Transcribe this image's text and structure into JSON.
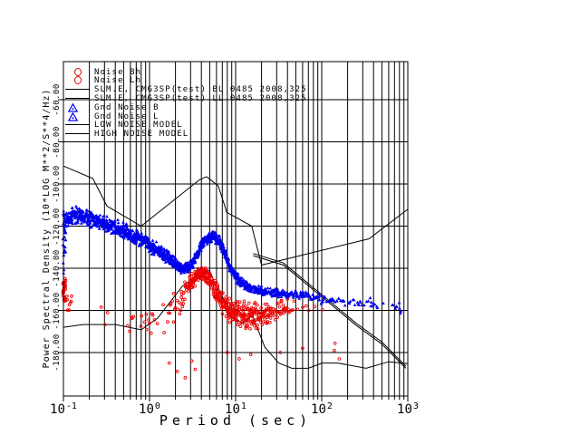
{
  "colors": {
    "background": "#ffffff",
    "grid": "#000000",
    "model_line": "#000000",
    "gnd_noise_blue": "#0000ee",
    "noise_red": "#ee0000"
  },
  "legend": {
    "items": [
      {
        "symbol": "red-circle",
        "label": "Noise Bh"
      },
      {
        "symbol": "red-circle",
        "label": "Noise Lh"
      },
      {
        "symbol": "black-line",
        "label": "SLM.E, CMG3SP(test) BL 0485 2008,325"
      },
      {
        "symbol": "black-line",
        "label": "SLM.E, CMG3SP(test) LL 0485 2008,325"
      },
      {
        "symbol": "blue-triangle",
        "label": "Gnd Noise B"
      },
      {
        "symbol": "blue-triangle",
        "label": "Gnd Noise L"
      },
      {
        "symbol": "black-line",
        "label": "LOW NOISE MODEL"
      },
      {
        "symbol": "black-line",
        "label": "HIGH NOISE MODEL"
      }
    ]
  },
  "chart_data": {
    "type": "scatter",
    "xlabel": "Period (sec)",
    "ylabel": "Power Spectral Density (10*LOG M**2/S**4/Hz)",
    "x_scale": "log",
    "xlim": [
      0.1,
      1000
    ],
    "ylim": [
      -200.5,
      -42
    ],
    "grid": "vertical lines at every log minor tick, horizontal lines every 20 dB",
    "x_ticks": [
      {
        "base": "10",
        "exp": "-1",
        "logp": -1
      },
      {
        "base": "10",
        "exp": "0",
        "logp": 0
      },
      {
        "base": "10",
        "exp": "1",
        "logp": 1
      },
      {
        "base": "10",
        "exp": "2",
        "logp": 2
      },
      {
        "base": "10",
        "exp": "3",
        "logp": 3
      }
    ],
    "y_ticks": [
      {
        "label": "-60.00",
        "value": -60
      },
      {
        "label": "-80.00",
        "value": -80
      },
      {
        "label": "-100.00",
        "value": -100
      },
      {
        "label": "-120.00",
        "value": -120
      },
      {
        "label": "-140.00",
        "value": -140
      },
      {
        "label": "-160.00",
        "value": -160
      },
      {
        "label": "-180.00",
        "value": -180
      }
    ],
    "models": {
      "high_noise_model": [
        [
          0.1,
          -91.5
        ],
        [
          0.22,
          -97.4
        ],
        [
          0.32,
          -110.5
        ],
        [
          0.8,
          -120
        ],
        [
          3.8,
          -98
        ],
        [
          4.6,
          -96.5
        ],
        [
          6.3,
          -101
        ],
        [
          7.9,
          -113.5
        ],
        [
          15.4,
          -120
        ],
        [
          20,
          -138.5
        ],
        [
          354.8,
          -126
        ],
        [
          1000,
          -112
        ]
      ],
      "low_noise_model": [
        [
          0.1,
          -168
        ],
        [
          0.17,
          -166.7
        ],
        [
          0.4,
          -166.7
        ],
        [
          0.8,
          -169.2
        ],
        [
          1.24,
          -163.7
        ],
        [
          2.4,
          -148.6
        ],
        [
          4.3,
          -141.1
        ],
        [
          5,
          -141.1
        ],
        [
          6,
          -149
        ],
        [
          10,
          -163.8
        ],
        [
          12,
          -166.2
        ],
        [
          15.6,
          -162.1
        ],
        [
          21.9,
          -177.5
        ],
        [
          31.6,
          -185
        ],
        [
          45,
          -187.5
        ],
        [
          70,
          -187.5
        ],
        [
          101,
          -185
        ],
        [
          154,
          -185
        ],
        [
          328,
          -187.5
        ],
        [
          600,
          -184.4
        ],
        [
          1000,
          -185.3
        ]
      ],
      "instrument_bl": [
        [
          16,
          -133
        ],
        [
          36,
          -137.5
        ],
        [
          100,
          -152.5
        ],
        [
          250,
          -166
        ],
        [
          500,
          -175
        ],
        [
          950,
          -186.5
        ]
      ],
      "instrument_ll": [
        [
          16,
          -134
        ],
        [
          36,
          -138.5
        ],
        [
          100,
          -153.5
        ],
        [
          250,
          -167
        ],
        [
          500,
          -176
        ],
        [
          950,
          -187.5
        ]
      ]
    },
    "scatter": {
      "draw_order": [
        "noise_h",
        "gnd_noise"
      ],
      "bands": {
        "gnd_noise": {
          "legend": "Gnd Noise B/L",
          "color": "#0000ee",
          "marker": "triangle",
          "segments": [
            [
              0.098,
              0.107,
              -124,
              -121,
              22,
              8,
              12
            ],
            [
              0.107,
              0.13,
              -117,
              -114.5,
              5,
              4.5,
              6
            ],
            [
              0.13,
              0.22,
              -114.5,
              -117,
              4.5,
              4.5,
              6
            ],
            [
              0.22,
              0.45,
              -117,
              -121,
              4,
              4,
              6
            ],
            [
              0.45,
              0.9,
              -121,
              -127.5,
              4,
              4,
              6
            ],
            [
              0.9,
              1.6,
              -127.5,
              -134.5,
              4,
              4,
              6
            ],
            [
              1.6,
              2.4,
              -134.5,
              -140.5,
              3.5,
              3,
              6
            ],
            [
              2.4,
              3.0,
              -140.5,
              -139,
              3,
              3,
              6
            ],
            [
              3.0,
              4.2,
              -139,
              -127.5,
              3,
              3,
              6
            ],
            [
              4.2,
              5.6,
              -127.5,
              -124.5,
              3,
              3,
              7
            ],
            [
              5.6,
              6.6,
              -124.5,
              -127.5,
              3,
              3,
              6
            ],
            [
              6.6,
              8.5,
              -127.5,
              -139,
              3,
              3,
              6
            ],
            [
              8.5,
              11,
              -139,
              -146,
              3,
              3,
              6
            ],
            [
              11,
              15,
              -146,
              -149.5,
              2.5,
              2.5,
              5
            ],
            [
              15,
              22,
              -149.5,
              -151,
              2.5,
              2.5,
              3.5
            ],
            [
              22,
              35,
              -151,
              -152,
              2.5,
              2.5,
              2.5
            ],
            [
              35,
              60,
              -152,
              -153,
              2.5,
              2.5,
              1.8
            ],
            [
              60,
              100,
              -153,
              -154,
              2.5,
              3,
              1.3
            ],
            [
              100,
              170,
              -154,
              -155.5,
              3,
              3,
              0.9
            ],
            [
              170,
              300,
              -155.5,
              -156.5,
              3,
              3,
              0.65
            ],
            [
              300,
              550,
              -156.5,
              -157.5,
              3.5,
              3.5,
              0.5
            ],
            [
              550,
              850,
              -157.5,
              -159.5,
              3.5,
              3.5,
              0.45
            ]
          ],
          "outliers": []
        },
        "noise_h": {
          "legend": "Noise Bh/Lh",
          "color": "#ee0000",
          "marker": "open-circle",
          "segments": [
            [
              0.098,
              0.106,
              -151,
              -151,
              9,
              9,
              9
            ],
            [
              0.106,
              0.125,
              -155,
              -157,
              6,
              5,
              1.5
            ],
            [
              0.125,
              0.55,
              -160,
              -165,
              6,
              6,
              0.04
            ],
            [
              0.55,
              0.95,
              -168,
              -167,
              7,
              8,
              0.35
            ],
            [
              0.95,
              1.6,
              -167,
              -162,
              9,
              9,
              0.55
            ],
            [
              1.6,
              2.3,
              -162,
              -155,
              9,
              8,
              1.0
            ],
            [
              2.3,
              2.9,
              -155,
              -148,
              7,
              6,
              2.2
            ],
            [
              2.9,
              3.6,
              -148,
              -143.5,
              4.5,
              3.5,
              5
            ],
            [
              3.6,
              4.4,
              -143.5,
              -142.5,
              3.5,
              3.5,
              6
            ],
            [
              4.4,
              5.2,
              -142.5,
              -147,
              4,
              5,
              5
            ],
            [
              5.2,
              6.5,
              -147,
              -155,
              6,
              6,
              4.5
            ],
            [
              6.5,
              8.5,
              -155,
              -159.5,
              6,
              6.5,
              4.5
            ],
            [
              8.5,
              12,
              -159.5,
              -162.5,
              7,
              7.5,
              4.5
            ],
            [
              12,
              18,
              -162.5,
              -163,
              7.5,
              7.5,
              4
            ],
            [
              18,
              26,
              -163,
              -161,
              7,
              7,
              3
            ],
            [
              26,
              38,
              -161,
              -158.5,
              6,
              5.5,
              1.8
            ],
            [
              38,
              55,
              -158.5,
              -157,
              5,
              4,
              0.8
            ],
            [
              55,
              85,
              -157,
              -159,
              4,
              4,
              0.3
            ],
            [
              85,
              170,
              -162,
              -176,
              7,
              6,
              0.08
            ]
          ],
          "outliers": [
            [
              1.7,
              -185
            ],
            [
              2.1,
              -189
            ],
            [
              2.6,
              -192
            ],
            [
              3.1,
              -184
            ],
            [
              3.4,
              -188
            ],
            [
              8,
              -180
            ],
            [
              11,
              -183
            ],
            [
              15,
              -181
            ],
            [
              33,
              -180
            ],
            [
              60,
              -178
            ],
            [
              140,
              -179
            ],
            [
              160,
              -183
            ]
          ]
        }
      }
    }
  }
}
